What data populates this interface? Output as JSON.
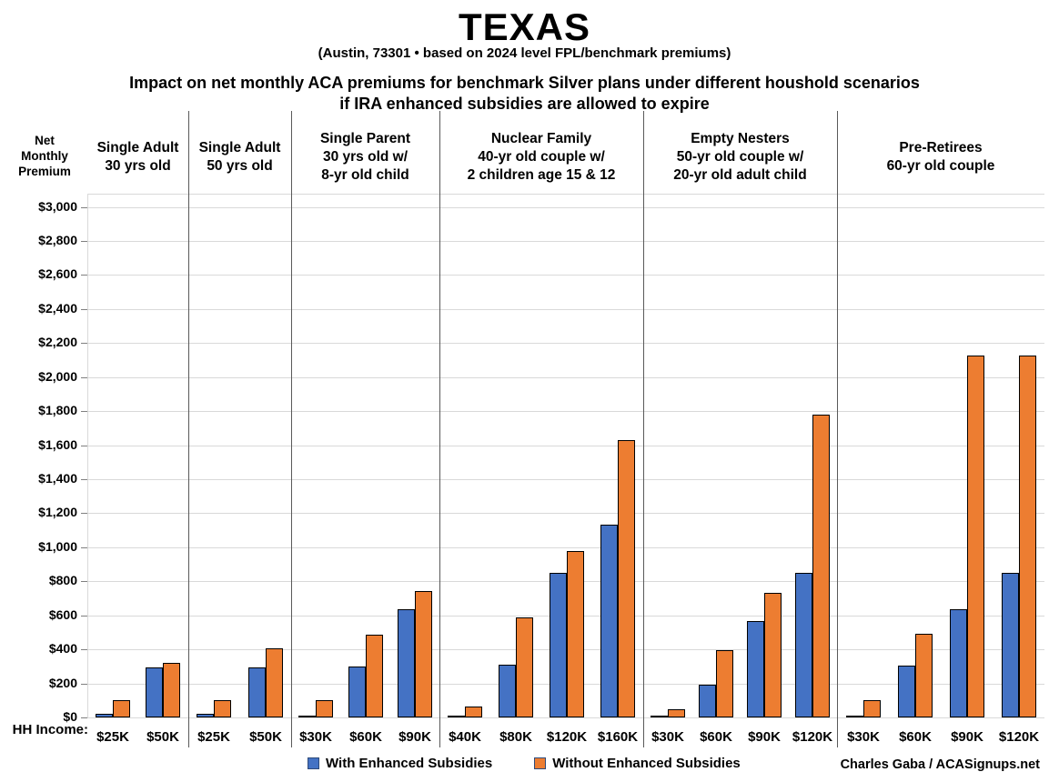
{
  "title": "TEXAS",
  "subtitle": "(Austin, 73301 • based on 2024 level FPL/benchmark premiums)",
  "heading_line1": "Impact on net monthly ACA premiums for benchmark Silver plans under different houshold scenarios",
  "heading_line2": "if IRA enhanced subsidies are allowed to expire",
  "footer": {
    "credit": "Charles Gaba / ACASignups.net"
  },
  "chart_data": {
    "type": "bar",
    "title": "TEXAS",
    "subtitle": "(Austin, 73301 • based on 2024 level FPL/benchmark premiums)",
    "y_axis": {
      "label": "Net Monthly Premium",
      "min": 0,
      "max": 3000,
      "step": 200,
      "format": "$#,##0"
    },
    "x_axis_label": "HH Income:",
    "grid": true,
    "legend_position": "bottom",
    "series": [
      {
        "name": "With Enhanced Subsidies",
        "color": "#4472C4"
      },
      {
        "name": "Without Enhanced Subsidies",
        "color": "#ED7D31"
      }
    ],
    "groups": [
      {
        "header": [
          "Single Adult",
          "30 yrs old"
        ],
        "categories": [
          "$25K",
          "$50K"
        ],
        "with_enhanced": [
          20,
          295
        ],
        "without_enhanced": [
          104,
          320
        ]
      },
      {
        "header": [
          "Single Adult",
          "50 yrs old"
        ],
        "categories": [
          "$25K",
          "$50K"
        ],
        "with_enhanced": [
          20,
          295
        ],
        "without_enhanced": [
          104,
          405
        ]
      },
      {
        "header": [
          "Single Parent",
          "30 yrs old w/",
          "8-yr old child"
        ],
        "categories": [
          "$30K",
          "$60K",
          "$90K"
        ],
        "with_enhanced": [
          0,
          300,
          637
        ],
        "without_enhanced": [
          104,
          485,
          740
        ]
      },
      {
        "header": [
          "Nuclear Family",
          "40-yr old couple w/",
          "2 children age 15 & 12"
        ],
        "categories": [
          "$40K",
          "$80K",
          "$120K",
          "$160K"
        ],
        "with_enhanced": [
          0,
          310,
          850,
          1133
        ],
        "without_enhanced": [
          65,
          590,
          980,
          1630
        ]
      },
      {
        "header": [
          "Empty Nesters",
          "50-yr old couple w/",
          "20-yr old adult child"
        ],
        "categories": [
          "$30K",
          "$60K",
          "$90K",
          "$120K"
        ],
        "with_enhanced": [
          0,
          190,
          565,
          850
        ],
        "without_enhanced": [
          50,
          395,
          730,
          1780
        ]
      },
      {
        "header": [
          "Pre-Retirees",
          "60-yr old couple"
        ],
        "categories": [
          "$30K",
          "$60K",
          "$90K",
          "$120K"
        ],
        "with_enhanced": [
          0,
          305,
          637,
          850
        ],
        "without_enhanced": [
          104,
          490,
          2125,
          2125
        ]
      }
    ]
  }
}
